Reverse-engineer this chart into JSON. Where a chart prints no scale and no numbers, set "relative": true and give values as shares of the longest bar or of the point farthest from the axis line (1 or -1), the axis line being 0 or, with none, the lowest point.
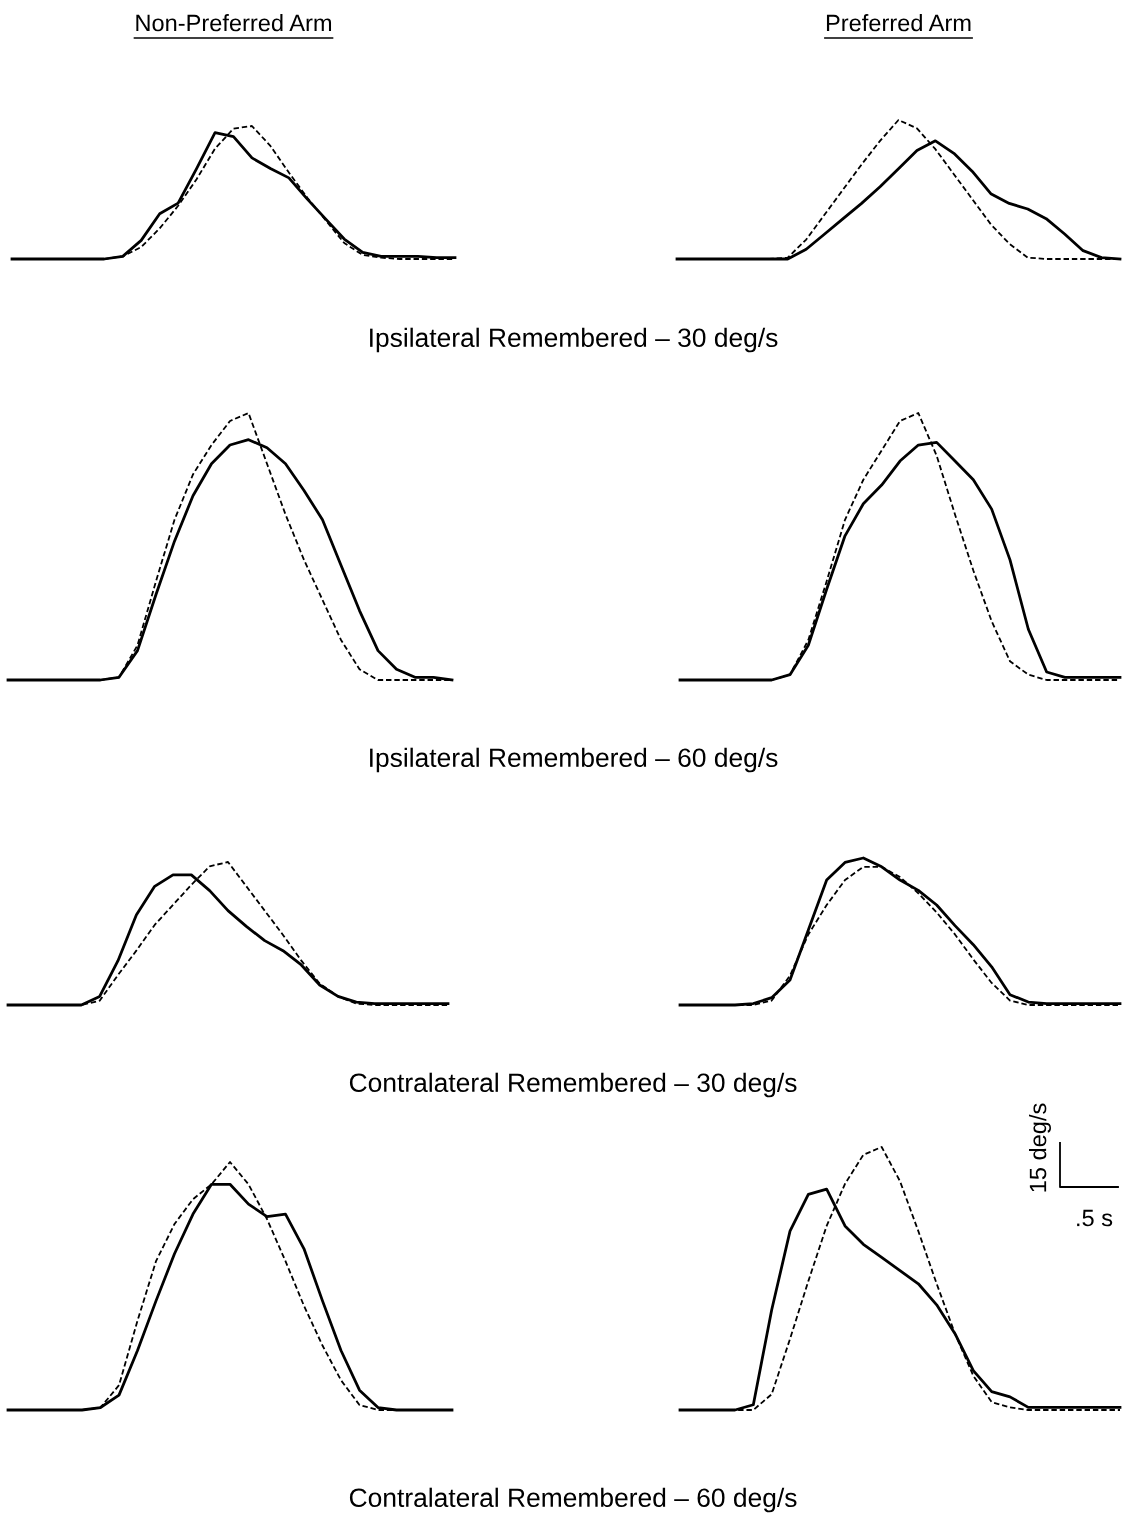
{
  "chart_data": [
    {
      "type": "line",
      "relative": true,
      "title": "Non-Preferred Arm",
      "xlabel": "Ipsilateral Remembered – 30 deg/s",
      "categories": [
        null,
        null,
        null,
        null,
        null,
        null,
        null,
        null,
        null,
        null,
        null,
        null,
        null,
        null,
        null,
        null,
        null,
        null,
        null,
        null,
        null,
        null,
        null,
        null,
        null
      ],
      "series": [
        {
          "color": "#000000",
          "line_style": "solid",
          "values": [
            0,
            0,
            0,
            0,
            0,
            0,
            0.02,
            0.14,
            0.34,
            0.42,
            0.68,
            0.95,
            0.92,
            0.76,
            0.68,
            0.61,
            0.45,
            0.3,
            0.15,
            0.05,
            0.02,
            0.02,
            0.02,
            0.01,
            0.01
          ]
        },
        {
          "color": "#000000",
          "line_style": "dashed",
          "values": [
            0,
            0,
            0,
            0,
            0,
            0,
            0.02,
            0.09,
            0.23,
            0.4,
            0.6,
            0.83,
            0.98,
            1,
            0.85,
            0.65,
            0.46,
            0.29,
            0.12,
            0.03,
            0.01,
            0,
            0,
            0,
            0
          ]
        }
      ]
    },
    {
      "type": "line",
      "relative": true,
      "title": "Preferred Arm",
      "categories": [
        null,
        null,
        null,
        null,
        null,
        null,
        null,
        null,
        null,
        null,
        null,
        null,
        null,
        null,
        null,
        null,
        null,
        null,
        null,
        null,
        null,
        null,
        null,
        null,
        null
      ],
      "series": [
        {
          "color": "#000000",
          "line_style": "solid",
          "values": [
            0,
            0,
            0,
            0,
            0,
            0,
            0,
            0.07,
            0.18,
            0.29,
            0.4,
            0.52,
            0.65,
            0.78,
            0.85,
            0.76,
            0.63,
            0.47,
            0.4,
            0.36,
            0.29,
            0.18,
            0.06,
            0.01,
            0
          ]
        },
        {
          "color": "#000000",
          "line_style": "dashed",
          "values": [
            0,
            0,
            0,
            0,
            0,
            0,
            0.01,
            0.14,
            0.32,
            0.5,
            0.68,
            0.85,
            1,
            0.94,
            0.79,
            0.61,
            0.43,
            0.25,
            0.11,
            0.01,
            0,
            0,
            0,
            0,
            0
          ]
        }
      ]
    },
    {
      "type": "line",
      "relative": true,
      "xlabel": "Ipsilateral Remembered – 60 deg/s",
      "categories": [
        null,
        null,
        null,
        null,
        null,
        null,
        null,
        null,
        null,
        null,
        null,
        null,
        null,
        null,
        null,
        null,
        null,
        null,
        null,
        null,
        null,
        null,
        null,
        null,
        null
      ],
      "series": [
        {
          "color": "#000000",
          "line_style": "solid",
          "values": [
            0,
            0,
            0,
            0,
            0,
            0,
            0.01,
            0.11,
            0.32,
            0.52,
            0.69,
            0.81,
            0.88,
            0.9,
            0.87,
            0.81,
            0.71,
            0.6,
            0.43,
            0.26,
            0.11,
            0.04,
            0.01,
            0.01,
            0
          ]
        },
        {
          "color": "#000000",
          "line_style": "dashed",
          "values": [
            0,
            0,
            0,
            0,
            0,
            0,
            0.01,
            0.13,
            0.37,
            0.6,
            0.77,
            0.88,
            0.97,
            1,
            0.81,
            0.62,
            0.45,
            0.3,
            0.15,
            0.04,
            0,
            0,
            0,
            0,
            0
          ]
        }
      ]
    },
    {
      "type": "line",
      "relative": true,
      "categories": [
        null,
        null,
        null,
        null,
        null,
        null,
        null,
        null,
        null,
        null,
        null,
        null,
        null,
        null,
        null,
        null,
        null,
        null,
        null,
        null,
        null,
        null,
        null,
        null,
        null
      ],
      "series": [
        {
          "color": "#000000",
          "line_style": "solid",
          "values": [
            0,
            0,
            0,
            0,
            0,
            0,
            0.02,
            0.13,
            0.34,
            0.54,
            0.66,
            0.73,
            0.82,
            0.88,
            0.89,
            0.82,
            0.75,
            0.64,
            0.45,
            0.19,
            0.03,
            0.01,
            0.01,
            0.01,
            0.01
          ]
        },
        {
          "color": "#000000",
          "line_style": "dashed",
          "values": [
            0,
            0,
            0,
            0,
            0,
            0,
            0.02,
            0.15,
            0.37,
            0.6,
            0.75,
            0.86,
            0.97,
            1,
            0.84,
            0.62,
            0.41,
            0.22,
            0.07,
            0.02,
            0,
            0,
            0,
            0,
            0
          ]
        }
      ]
    },
    {
      "type": "line",
      "relative": true,
      "xlabel": "Contralateral Remembered – 30 deg/s",
      "categories": [
        null,
        null,
        null,
        null,
        null,
        null,
        null,
        null,
        null,
        null,
        null,
        null,
        null,
        null,
        null,
        null,
        null,
        null,
        null,
        null,
        null,
        null,
        null,
        null,
        null
      ],
      "series": [
        {
          "color": "#000000",
          "line_style": "solid",
          "values": [
            0,
            0,
            0,
            0,
            0,
            0.06,
            0.31,
            0.63,
            0.83,
            0.91,
            0.91,
            0.8,
            0.66,
            0.55,
            0.45,
            0.38,
            0.28,
            0.14,
            0.06,
            0.02,
            0.01,
            0.01,
            0.01,
            0.01,
            0.01
          ]
        },
        {
          "color": "#000000",
          "line_style": "dashed",
          "values": [
            0,
            0,
            0,
            0,
            0,
            0.03,
            0.21,
            0.38,
            0.56,
            0.7,
            0.84,
            0.97,
            1,
            0.83,
            0.66,
            0.49,
            0.31,
            0.15,
            0.06,
            0.01,
            0,
            0,
            0,
            0,
            0
          ]
        }
      ]
    },
    {
      "type": "line",
      "relative": true,
      "categories": [
        null,
        null,
        null,
        null,
        null,
        null,
        null,
        null,
        null,
        null,
        null,
        null,
        null,
        null,
        null,
        null,
        null,
        null,
        null,
        null,
        null,
        null,
        null,
        null,
        null
      ],
      "series": [
        {
          "color": "#000000",
          "line_style": "solid",
          "values": [
            0,
            0,
            0,
            0,
            0.01,
            0.05,
            0.17,
            0.51,
            0.85,
            0.97,
            1,
            0.94,
            0.85,
            0.78,
            0.68,
            0.54,
            0.41,
            0.26,
            0.07,
            0.02,
            0.01,
            0.01,
            0.01,
            0.01,
            0.01
          ]
        },
        {
          "color": "#000000",
          "line_style": "dashed",
          "values": [
            0,
            0,
            0,
            0,
            0,
            0.03,
            0.2,
            0.48,
            0.68,
            0.85,
            0.94,
            0.94,
            0.87,
            0.76,
            0.63,
            0.48,
            0.31,
            0.15,
            0.03,
            0,
            0,
            0,
            0,
            0,
            0
          ]
        }
      ]
    },
    {
      "type": "line",
      "relative": true,
      "xlabel": "Contralateral Remembered – 60 deg/s",
      "categories": [
        null,
        null,
        null,
        null,
        null,
        null,
        null,
        null,
        null,
        null,
        null,
        null,
        null,
        null,
        null,
        null,
        null,
        null,
        null,
        null,
        null,
        null,
        null,
        null,
        null
      ],
      "series": [
        {
          "color": "#000000",
          "line_style": "solid",
          "values": [
            0,
            0,
            0,
            0,
            0,
            0.01,
            0.06,
            0.24,
            0.44,
            0.63,
            0.79,
            0.91,
            0.91,
            0.83,
            0.78,
            0.79,
            0.65,
            0.44,
            0.24,
            0.08,
            0.01,
            0,
            0,
            0,
            0
          ]
        },
        {
          "color": "#000000",
          "line_style": "dashed",
          "values": [
            0,
            0,
            0,
            0,
            0,
            0.01,
            0.1,
            0.36,
            0.6,
            0.75,
            0.85,
            0.91,
            1,
            0.91,
            0.77,
            0.6,
            0.42,
            0.26,
            0.12,
            0.02,
            0,
            0,
            0,
            0,
            0
          ]
        }
      ]
    },
    {
      "type": "line",
      "relative": true,
      "annotations": [
        "15 deg/s",
        ".5 s"
      ],
      "categories": [
        null,
        null,
        null,
        null,
        null,
        null,
        null,
        null,
        null,
        null,
        null,
        null,
        null,
        null,
        null,
        null,
        null,
        null,
        null,
        null,
        null,
        null,
        null,
        null,
        null
      ],
      "series": [
        {
          "color": "#000000",
          "line_style": "solid",
          "values": [
            0,
            0,
            0,
            0,
            0.02,
            0.38,
            0.68,
            0.82,
            0.84,
            0.7,
            0.63,
            0.58,
            0.53,
            0.48,
            0.4,
            0.29,
            0.15,
            0.07,
            0.05,
            0.01,
            0.01,
            0.01,
            0.01,
            0.01,
            0.01
          ]
        },
        {
          "color": "#000000",
          "line_style": "dashed",
          "values": [
            0,
            0,
            0,
            0,
            0,
            0.06,
            0.27,
            0.49,
            0.7,
            0.86,
            0.97,
            1,
            0.87,
            0.68,
            0.48,
            0.29,
            0.13,
            0.03,
            0.01,
            0,
            0,
            0,
            0,
            0,
            0
          ]
        }
      ]
    }
  ]
}
